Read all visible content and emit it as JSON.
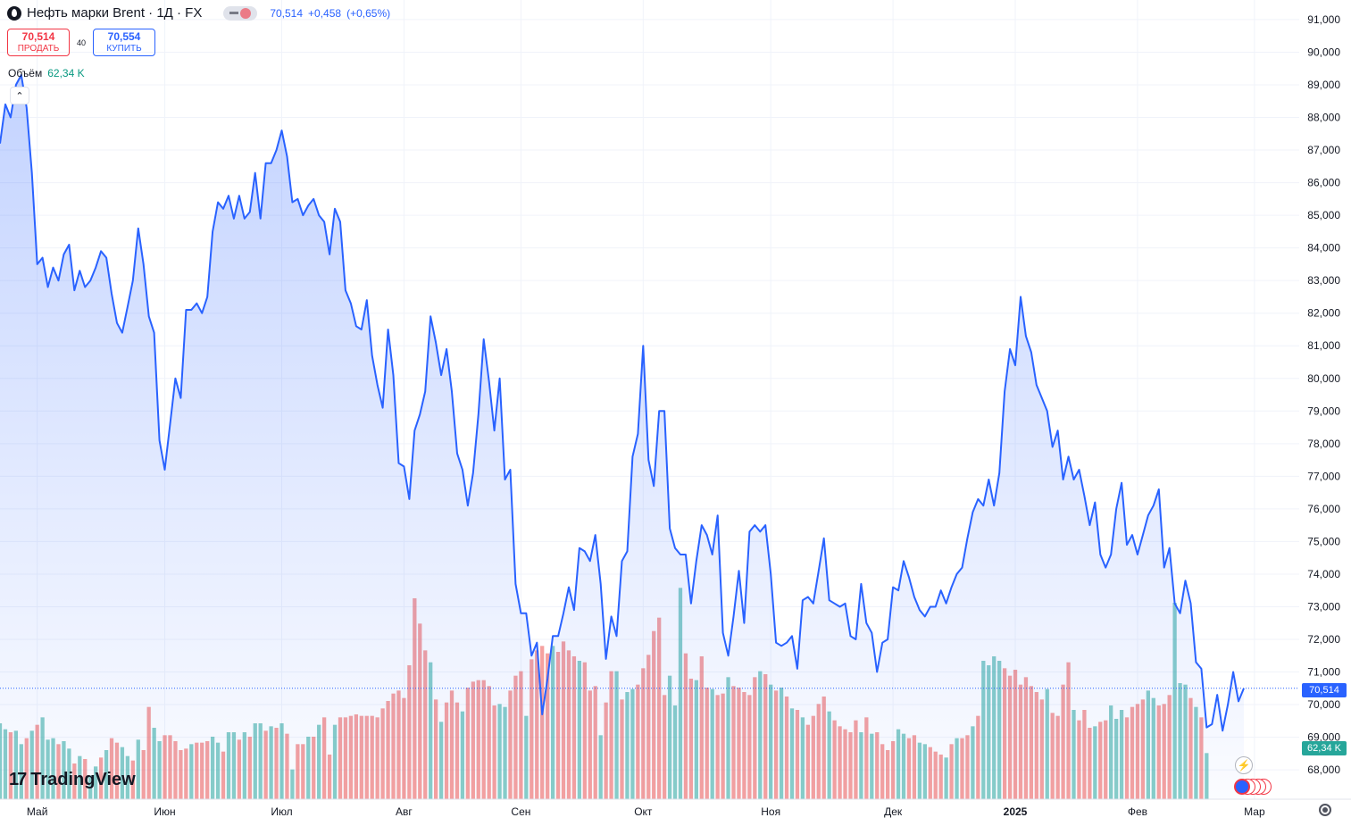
{
  "header": {
    "symbol_title": "Нефть марки Brent · 1Д · FX",
    "last_price": "70,514",
    "change": "+0,458",
    "change_pct": "(+0,65%)"
  },
  "trade": {
    "sell_price": "70,514",
    "sell_label": "ПРОДАТЬ",
    "spread": "40",
    "buy_price": "70,554",
    "buy_label": "КУПИТЬ"
  },
  "volume_indicator": {
    "label": "Объём",
    "value": "62,34 K"
  },
  "price_label": "70,514",
  "volume_label": "62,34 K",
  "logo": "TradingView",
  "colors": {
    "line": "#2962ff",
    "fill": "#2962ff",
    "up_volume": "#26a69a",
    "down_volume": "#ef5350",
    "axis_text": "#131722",
    "grid": "#f0f3fa"
  },
  "chart_data": {
    "type": "area",
    "ylim": [
      67.1,
      91.6
    ],
    "grid": true,
    "y_ticks": [
      68,
      69,
      70,
      71,
      72,
      73,
      74,
      75,
      76,
      77,
      78,
      79,
      80,
      81,
      82,
      83,
      84,
      85,
      86,
      87,
      88,
      89,
      90,
      91
    ],
    "y_tick_labels": [
      "68,000",
      "69,000",
      "70,000",
      "71,000",
      "72,000",
      "73,000",
      "74,000",
      "75,000",
      "76,000",
      "77,000",
      "78,000",
      "79,000",
      "80,000",
      "81,000",
      "82,000",
      "83,000",
      "84,000",
      "85,000",
      "86,000",
      "87,000",
      "88,000",
      "89,000",
      "90,000",
      "91,000"
    ],
    "x_ticks": [
      "Май",
      "Июн",
      "Июл",
      "Авг",
      "Сен",
      "Окт",
      "Ноя",
      "Дек",
      "2025",
      "Фев",
      "Мар"
    ],
    "x_tick_index": [
      7,
      31,
      53,
      76,
      98,
      121,
      145,
      168,
      191,
      214,
      236
    ],
    "series": [
      {
        "values": [
          87.2,
          88.4,
          88.0,
          89.0,
          89.3,
          88.3,
          86.3,
          83.5,
          83.7,
          82.8,
          83.4,
          83.0,
          83.8,
          84.1,
          82.7,
          83.3,
          82.8,
          83.0,
          83.4,
          83.9,
          83.7,
          82.6,
          81.7,
          81.4,
          82.2,
          83.0,
          84.6,
          83.5,
          81.9,
          81.4,
          78.1,
          77.2,
          78.6,
          80.0,
          79.4,
          82.1,
          82.1,
          82.3,
          82.0,
          82.5,
          84.5,
          85.4,
          85.2,
          85.6,
          84.9,
          85.6,
          84.9,
          85.1,
          86.3,
          84.9,
          86.6,
          86.6,
          87.0,
          87.6,
          86.8,
          85.4,
          85.5,
          85.0,
          85.3,
          85.5,
          85.0,
          84.8,
          83.8,
          85.2,
          84.8,
          82.7,
          82.3,
          81.6,
          81.5,
          82.4,
          80.7,
          79.8,
          79.1,
          81.5,
          80.1,
          77.4,
          77.3,
          76.3,
          78.4,
          78.9,
          79.6,
          81.9,
          81.1,
          80.1,
          80.9,
          79.6,
          77.7,
          77.2,
          76.1,
          77.1,
          78.9,
          81.2,
          79.9,
          78.4,
          80.0,
          76.9,
          77.2,
          73.7,
          72.8,
          72.8,
          71.5,
          71.9,
          69.7,
          70.8,
          72.1,
          72.1,
          72.8,
          73.6,
          72.9,
          74.8,
          74.7,
          74.4,
          75.2,
          73.7,
          71.4,
          72.7,
          72.1,
          74.4,
          74.7,
          77.6,
          78.3,
          81.0,
          77.5,
          76.7,
          79.0,
          79.0,
          75.4,
          74.8,
          74.6,
          74.6,
          73.1,
          74.4,
          75.5,
          75.2,
          74.6,
          75.8,
          72.2,
          71.5,
          72.7,
          74.1,
          72.5,
          75.3,
          75.5,
          75.3,
          75.5,
          74.0,
          71.9,
          71.8,
          71.9,
          72.1,
          71.1,
          73.2,
          73.3,
          73.1,
          74.1,
          75.1,
          73.2,
          73.1,
          73.0,
          73.1,
          72.1,
          72.0,
          73.7,
          72.5,
          72.2,
          71.0,
          71.9,
          72.0,
          73.6,
          73.5,
          74.4,
          73.9,
          73.3,
          72.9,
          72.7,
          73.0,
          73.0,
          73.5,
          73.1,
          73.6,
          74.0,
          74.2,
          75.1,
          75.9,
          76.3,
          76.1,
          76.9,
          76.1,
          77.1,
          79.6,
          80.9,
          80.4,
          82.5,
          81.3,
          80.8,
          79.8,
          79.4,
          79.0,
          77.9,
          78.4,
          76.9,
          77.6,
          76.9,
          77.2,
          76.4,
          75.5,
          76.2,
          74.6,
          74.2,
          74.6,
          76.0,
          76.8,
          74.9,
          75.2,
          74.6,
          75.2,
          75.8,
          76.1,
          76.6,
          74.2,
          74.8,
          73.1,
          72.8,
          73.8,
          73.1,
          71.3,
          71.1,
          69.3,
          69.4,
          70.3,
          69.2,
          70.0,
          71.0,
          70.1,
          70.5
        ]
      }
    ],
    "volumes": [
      {
        "v": 51,
        "up": true
      },
      {
        "v": 47,
        "up": true
      },
      {
        "v": 45,
        "up": false
      },
      {
        "v": 46,
        "up": true
      },
      {
        "v": 37,
        "up": true
      },
      {
        "v": 41,
        "up": false
      },
      {
        "v": 46,
        "up": true
      },
      {
        "v": 50,
        "up": false
      },
      {
        "v": 55,
        "up": true
      },
      {
        "v": 40,
        "up": true
      },
      {
        "v": 41,
        "up": true
      },
      {
        "v": 37,
        "up": false
      },
      {
        "v": 39,
        "up": true
      },
      {
        "v": 34,
        "up": true
      },
      {
        "v": 24,
        "up": false
      },
      {
        "v": 29,
        "up": true
      },
      {
        "v": 27,
        "up": false
      },
      {
        "v": 16,
        "up": true
      },
      {
        "v": 22,
        "up": true
      },
      {
        "v": 28,
        "up": false
      },
      {
        "v": 33,
        "up": true
      },
      {
        "v": 41,
        "up": false
      },
      {
        "v": 38,
        "up": false
      },
      {
        "v": 35,
        "up": true
      },
      {
        "v": 29,
        "up": true
      },
      {
        "v": 26,
        "up": false
      },
      {
        "v": 40,
        "up": true
      },
      {
        "v": 33,
        "up": false
      },
      {
        "v": 62,
        "up": false
      },
      {
        "v": 48,
        "up": true
      },
      {
        "v": 39,
        "up": true
      },
      {
        "v": 43,
        "up": false
      },
      {
        "v": 43,
        "up": false
      },
      {
        "v": 39,
        "up": false
      },
      {
        "v": 33,
        "up": false
      },
      {
        "v": 34,
        "up": false
      },
      {
        "v": 37,
        "up": true
      },
      {
        "v": 38,
        "up": false
      },
      {
        "v": 38,
        "up": false
      },
      {
        "v": 39,
        "up": false
      },
      {
        "v": 42,
        "up": true
      },
      {
        "v": 38,
        "up": true
      },
      {
        "v": 32,
        "up": false
      },
      {
        "v": 45,
        "up": true
      },
      {
        "v": 45,
        "up": true
      },
      {
        "v": 40,
        "up": false
      },
      {
        "v": 45,
        "up": true
      },
      {
        "v": 42,
        "up": false
      },
      {
        "v": 51,
        "up": true
      },
      {
        "v": 51,
        "up": true
      },
      {
        "v": 46,
        "up": false
      },
      {
        "v": 49,
        "up": true
      },
      {
        "v": 48,
        "up": false
      },
      {
        "v": 51,
        "up": true
      },
      {
        "v": 44,
        "up": false
      },
      {
        "v": 20,
        "up": true
      },
      {
        "v": 37,
        "up": false
      },
      {
        "v": 37,
        "up": false
      },
      {
        "v": 42,
        "up": true
      },
      {
        "v": 42,
        "up": false
      },
      {
        "v": 50,
        "up": true
      },
      {
        "v": 55,
        "up": false
      },
      {
        "v": 30,
        "up": false
      },
      {
        "v": 50,
        "up": true
      },
      {
        "v": 55,
        "up": false
      },
      {
        "v": 55,
        "up": false
      },
      {
        "v": 56,
        "up": false
      },
      {
        "v": 57,
        "up": false
      },
      {
        "v": 56,
        "up": false
      },
      {
        "v": 56,
        "up": false
      },
      {
        "v": 56,
        "up": false
      },
      {
        "v": 55,
        "up": false
      },
      {
        "v": 61,
        "up": false
      },
      {
        "v": 66,
        "up": false
      },
      {
        "v": 71,
        "up": false
      },
      {
        "v": 73,
        "up": false
      },
      {
        "v": 68,
        "up": false
      },
      {
        "v": 90,
        "up": false
      },
      {
        "v": 135,
        "up": false
      },
      {
        "v": 118,
        "up": false
      },
      {
        "v": 100,
        "up": false
      },
      {
        "v": 92,
        "up": true
      },
      {
        "v": 67,
        "up": false
      },
      {
        "v": 52,
        "up": true
      },
      {
        "v": 65,
        "up": false
      },
      {
        "v": 73,
        "up": false
      },
      {
        "v": 65,
        "up": false
      },
      {
        "v": 59,
        "up": true
      },
      {
        "v": 75,
        "up": false
      },
      {
        "v": 79,
        "up": false
      },
      {
        "v": 80,
        "up": false
      },
      {
        "v": 80,
        "up": false
      },
      {
        "v": 76,
        "up": false
      },
      {
        "v": 63,
        "up": false
      },
      {
        "v": 64,
        "up": true
      },
      {
        "v": 62,
        "up": true
      },
      {
        "v": 73,
        "up": false
      },
      {
        "v": 83,
        "up": false
      },
      {
        "v": 86,
        "up": false
      },
      {
        "v": 56,
        "up": true
      },
      {
        "v": 94,
        "up": false
      },
      {
        "v": 100,
        "up": false
      },
      {
        "v": 103,
        "up": false
      },
      {
        "v": 98,
        "up": false
      },
      {
        "v": 103,
        "up": true
      },
      {
        "v": 99,
        "up": false
      },
      {
        "v": 106,
        "up": false
      },
      {
        "v": 100,
        "up": false
      },
      {
        "v": 96,
        "up": false
      },
      {
        "v": 93,
        "up": true
      },
      {
        "v": 92,
        "up": false
      },
      {
        "v": 73,
        "up": false
      },
      {
        "v": 76,
        "up": false
      },
      {
        "v": 43,
        "up": true
      },
      {
        "v": 65,
        "up": false
      },
      {
        "v": 86,
        "up": false
      },
      {
        "v": 86,
        "up": true
      },
      {
        "v": 67,
        "up": false
      },
      {
        "v": 72,
        "up": true
      },
      {
        "v": 74,
        "up": true
      },
      {
        "v": 77,
        "up": false
      },
      {
        "v": 88,
        "up": false
      },
      {
        "v": 97,
        "up": false
      },
      {
        "v": 113,
        "up": false
      },
      {
        "v": 122,
        "up": false
      },
      {
        "v": 70,
        "up": false
      },
      {
        "v": 83,
        "up": true
      },
      {
        "v": 63,
        "up": true
      },
      {
        "v": 142,
        "up": true
      },
      {
        "v": 98,
        "up": false
      },
      {
        "v": 81,
        "up": false
      },
      {
        "v": 80,
        "up": true
      },
      {
        "v": 96,
        "up": false
      },
      {
        "v": 75,
        "up": false
      },
      {
        "v": 74,
        "up": true
      },
      {
        "v": 70,
        "up": false
      },
      {
        "v": 71,
        "up": false
      },
      {
        "v": 82,
        "up": true
      },
      {
        "v": 76,
        "up": false
      },
      {
        "v": 75,
        "up": false
      },
      {
        "v": 72,
        "up": false
      },
      {
        "v": 70,
        "up": false
      },
      {
        "v": 82,
        "up": false
      },
      {
        "v": 86,
        "up": true
      },
      {
        "v": 84,
        "up": false
      },
      {
        "v": 77,
        "up": true
      },
      {
        "v": 73,
        "up": false
      },
      {
        "v": 75,
        "up": true
      },
      {
        "v": 69,
        "up": false
      },
      {
        "v": 61,
        "up": true
      },
      {
        "v": 60,
        "up": false
      },
      {
        "v": 55,
        "up": true
      },
      {
        "v": 50,
        "up": false
      },
      {
        "v": 56,
        "up": false
      },
      {
        "v": 64,
        "up": false
      },
      {
        "v": 69,
        "up": false
      },
      {
        "v": 59,
        "up": true
      },
      {
        "v": 53,
        "up": false
      },
      {
        "v": 49,
        "up": false
      },
      {
        "v": 47,
        "up": false
      },
      {
        "v": 45,
        "up": false
      },
      {
        "v": 53,
        "up": false
      },
      {
        "v": 45,
        "up": true
      },
      {
        "v": 55,
        "up": false
      },
      {
        "v": 44,
        "up": true
      },
      {
        "v": 45,
        "up": false
      },
      {
        "v": 37,
        "up": false
      },
      {
        "v": 33,
        "up": false
      },
      {
        "v": 39,
        "up": false
      },
      {
        "v": 47,
        "up": true
      },
      {
        "v": 44,
        "up": true
      },
      {
        "v": 41,
        "up": false
      },
      {
        "v": 43,
        "up": false
      },
      {
        "v": 38,
        "up": true
      },
      {
        "v": 37,
        "up": true
      },
      {
        "v": 35,
        "up": false
      },
      {
        "v": 32,
        "up": false
      },
      {
        "v": 30,
        "up": false
      },
      {
        "v": 28,
        "up": true
      },
      {
        "v": 37,
        "up": false
      },
      {
        "v": 41,
        "up": true
      },
      {
        "v": 41,
        "up": false
      },
      {
        "v": 43,
        "up": false
      },
      {
        "v": 49,
        "up": true
      },
      {
        "v": 56,
        "up": false
      },
      {
        "v": 93,
        "up": true
      },
      {
        "v": 90,
        "up": true
      },
      {
        "v": 96,
        "up": true
      },
      {
        "v": 93,
        "up": true
      },
      {
        "v": 88,
        "up": false
      },
      {
        "v": 83,
        "up": false
      },
      {
        "v": 87,
        "up": false
      },
      {
        "v": 77,
        "up": false
      },
      {
        "v": 82,
        "up": false
      },
      {
        "v": 76,
        "up": false
      },
      {
        "v": 72,
        "up": false
      },
      {
        "v": 67,
        "up": false
      },
      {
        "v": 74,
        "up": true
      },
      {
        "v": 58,
        "up": false
      },
      {
        "v": 56,
        "up": false
      },
      {
        "v": 77,
        "up": false
      },
      {
        "v": 92,
        "up": false
      },
      {
        "v": 60,
        "up": true
      },
      {
        "v": 53,
        "up": false
      },
      {
        "v": 60,
        "up": false
      },
      {
        "v": 48,
        "up": false
      },
      {
        "v": 49,
        "up": true
      },
      {
        "v": 52,
        "up": false
      },
      {
        "v": 53,
        "up": false
      },
      {
        "v": 63,
        "up": true
      },
      {
        "v": 54,
        "up": true
      },
      {
        "v": 60,
        "up": true
      },
      {
        "v": 55,
        "up": false
      },
      {
        "v": 62,
        "up": false
      },
      {
        "v": 64,
        "up": false
      },
      {
        "v": 67,
        "up": false
      },
      {
        "v": 73,
        "up": true
      },
      {
        "v": 68,
        "up": true
      },
      {
        "v": 63,
        "up": false
      },
      {
        "v": 64,
        "up": false
      },
      {
        "v": 70,
        "up": false
      },
      {
        "v": 132,
        "up": true
      },
      {
        "v": 78,
        "up": true
      },
      {
        "v": 77,
        "up": true
      },
      {
        "v": 68,
        "up": false
      },
      {
        "v": 62,
        "up": true
      },
      {
        "v": 55,
        "up": false
      },
      {
        "v": 31,
        "up": true
      }
    ]
  }
}
